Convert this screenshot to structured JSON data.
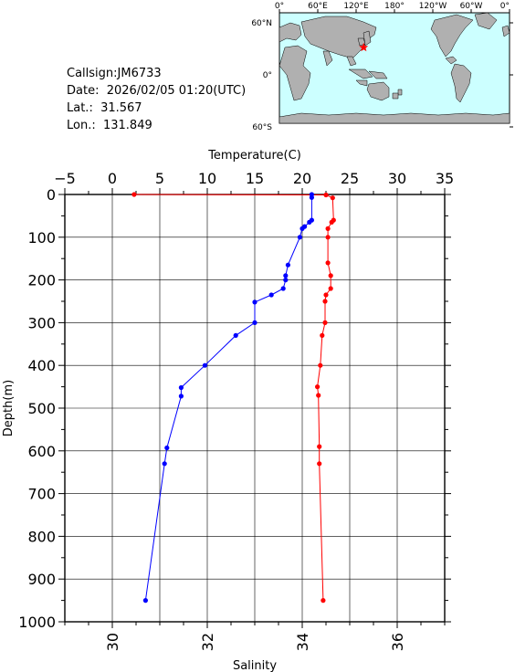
{
  "info": {
    "callsign": "Callsign:JM6733",
    "date": "Date:  2026/02/05 01:20(UTC)",
    "lat": "Lat.:  31.567",
    "lon": "Lon.:  131.849"
  },
  "map": {
    "top_labels": [
      "0°",
      "60°E",
      "120°E",
      "180°",
      "120°W",
      "60°W",
      "0°"
    ],
    "left_labels": [
      "60°N",
      "0°",
      "60°S"
    ],
    "ocean_color": "#ccffff",
    "land_color": "#b0b0b0",
    "marker_color": "#ff0000",
    "marker_icon": "star-icon",
    "station": {
      "lon": 131.849,
      "lat": 31.567
    }
  },
  "chart_data": {
    "type": "line",
    "ylabel": "Depth(m)",
    "ylim": [
      0,
      1000
    ],
    "yticks": [
      "0",
      "100",
      "200",
      "300",
      "400",
      "500",
      "600",
      "700",
      "800",
      "900",
      "1000"
    ],
    "y_inverted": true,
    "grid": true,
    "temperature_axis": {
      "label": "Temperature(C)",
      "position": "top",
      "range": [
        -5,
        35
      ],
      "ticks": [
        "−5",
        "0",
        "5",
        "10",
        "15",
        "20",
        "25",
        "30",
        "35"
      ]
    },
    "salinity_axis": {
      "label": "Salinity",
      "position": "bottom",
      "range": [
        29,
        37
      ],
      "ticks": [
        "30",
        "32",
        "34",
        "36"
      ]
    },
    "series": [
      {
        "axis": "temperature",
        "color": "#ff0000",
        "depth": [
          0,
          1,
          8,
          60,
          65,
          80,
          100,
          160,
          190,
          220,
          235,
          250,
          300,
          330,
          400,
          450,
          470,
          590,
          630,
          950
        ],
        "values": [
          2.3,
          22.5,
          23.2,
          23.3,
          23.1,
          22.7,
          22.7,
          22.7,
          23.0,
          23.0,
          22.5,
          22.4,
          22.4,
          22.1,
          21.9,
          21.6,
          21.7,
          21.8,
          21.8,
          22.2
        ]
      },
      {
        "axis": "salinity",
        "color": "#0000ff",
        "depth": [
          0,
          7,
          60,
          65,
          75,
          80,
          100,
          165,
          190,
          200,
          220,
          235,
          252,
          300,
          330,
          400,
          452,
          472,
          593,
          630,
          950
        ],
        "values": [
          34.2,
          34.2,
          34.2,
          34.15,
          34.05,
          34.0,
          33.95,
          33.7,
          33.65,
          33.65,
          33.6,
          33.35,
          33.0,
          33.0,
          32.6,
          31.95,
          31.45,
          31.45,
          31.15,
          31.1,
          30.7
        ]
      }
    ]
  }
}
